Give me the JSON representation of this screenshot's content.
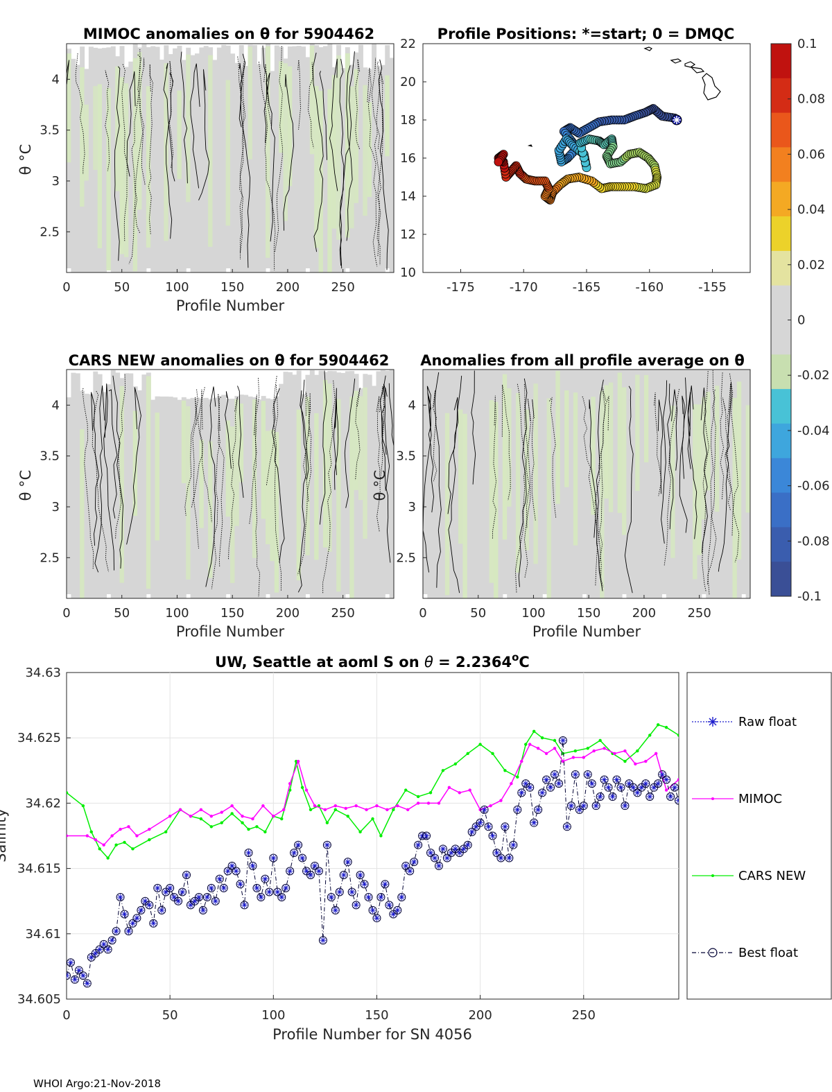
{
  "footer": "WHOI Argo:21-Nov-2018",
  "colors": {
    "cmap": [
      "#3a4f96",
      "#3a5dae",
      "#3a6fc6",
      "#3b87d8",
      "#3ea6dd",
      "#48c2d6",
      "#5ec9b7",
      "#7fcf8c",
      "#a7d563",
      "#d4db3f",
      "#ecd22a",
      "#f4a923",
      "#f2801f",
      "#ea571b",
      "#d42c15",
      "#c0120f"
    ],
    "grey": "#d6d6d6",
    "lightgreen": "#d6e8c0",
    "mimoc": "#ff00ff",
    "cars": "#00ee00",
    "raw": "#1a1acc",
    "best": "#000033"
  },
  "chart_data": [
    {
      "id": "mimoc",
      "type": "heatmap",
      "title": "MIMOC anomalies on θ  for 5904462",
      "xlabel": "Profile Number",
      "ylabel": "θ °C",
      "xlim": [
        0,
        296
      ],
      "ylim": [
        2.1,
        4.35
      ],
      "xticks": [
        0,
        50,
        100,
        150,
        200,
        250
      ],
      "yticks": [
        2.5,
        3,
        3.5,
        4
      ]
    },
    {
      "id": "positions",
      "type": "scatter",
      "title": "Profile Positions: *=start; 0 = DMQC",
      "xlim": [
        -178,
        -152
      ],
      "ylim": [
        10,
        22
      ],
      "xticks": [
        -175,
        -170,
        -165,
        -160,
        -155
      ],
      "yticks": [
        10,
        12,
        14,
        16,
        18,
        20,
        22
      ],
      "track": [
        [
          -158.0,
          18.1
        ],
        [
          -159.0,
          18.2
        ],
        [
          -159.7,
          18.6
        ],
        [
          -160.3,
          18.4
        ],
        [
          -161.2,
          18.2
        ],
        [
          -162.0,
          18.0
        ],
        [
          -163.0,
          18.0
        ],
        [
          -164.0,
          17.9
        ],
        [
          -164.8,
          17.6
        ],
        [
          -165.6,
          17.3
        ],
        [
          -166.3,
          17.6
        ],
        [
          -166.8,
          17.4
        ],
        [
          -166.2,
          16.9
        ],
        [
          -165.8,
          16.5
        ],
        [
          -166.5,
          16.0
        ],
        [
          -167.0,
          15.8
        ],
        [
          -167.2,
          16.4
        ],
        [
          -166.6,
          17.0
        ],
        [
          -166.0,
          16.6
        ],
        [
          -165.2,
          16.2
        ],
        [
          -165.0,
          15.5
        ],
        [
          -165.5,
          16.8
        ],
        [
          -164.8,
          17.0
        ],
        [
          -164.0,
          16.9
        ],
        [
          -163.6,
          16.7
        ],
        [
          -163.0,
          17.0
        ],
        [
          -162.9,
          16.6
        ],
        [
          -163.4,
          16.1
        ],
        [
          -163.1,
          15.7
        ],
        [
          -162.3,
          15.8
        ],
        [
          -161.6,
          16.2
        ],
        [
          -160.8,
          16.3
        ],
        [
          -160.1,
          16.0
        ],
        [
          -159.6,
          15.6
        ],
        [
          -159.4,
          15.0
        ],
        [
          -159.5,
          14.6
        ],
        [
          -160.3,
          14.4
        ],
        [
          -161.2,
          14.5
        ],
        [
          -162.2,
          14.5
        ],
        [
          -163.1,
          14.5
        ],
        [
          -163.8,
          14.4
        ],
        [
          -164.6,
          14.8
        ],
        [
          -165.6,
          15.0
        ],
        [
          -166.5,
          14.9
        ],
        [
          -167.1,
          14.6
        ],
        [
          -167.7,
          14.2
        ],
        [
          -167.9,
          13.8
        ],
        [
          -168.3,
          14.0
        ],
        [
          -168.0,
          14.4
        ],
        [
          -168.3,
          14.8
        ],
        [
          -169.1,
          14.8
        ],
        [
          -169.8,
          14.9
        ],
        [
          -170.3,
          15.2
        ],
        [
          -170.6,
          15.6
        ],
        [
          -171.0,
          15.3
        ],
        [
          -171.4,
          15.0
        ],
        [
          -171.6,
          15.8
        ],
        [
          -172.0,
          16.0
        ],
        [
          -171.6,
          16.2
        ],
        [
          -172.0,
          15.8
        ]
      ]
    },
    {
      "id": "cars",
      "type": "heatmap",
      "title": "CARS NEW anomalies on θ for 5904462",
      "xlabel": "Profile Number",
      "ylabel": "θ °C",
      "xlim": [
        0,
        296
      ],
      "ylim": [
        2.1,
        4.35
      ],
      "xticks": [
        0,
        50,
        100,
        150,
        200,
        250
      ],
      "yticks": [
        2.5,
        3,
        3.5,
        4
      ]
    },
    {
      "id": "allavg",
      "type": "heatmap",
      "title": "Anomalies from all profile average on θ",
      "xlabel": "Profile Number",
      "ylabel": "θ °C",
      "xlim": [
        0,
        296
      ],
      "ylim": [
        2.1,
        4.35
      ],
      "xticks": [
        0,
        50,
        100,
        150,
        200,
        250
      ],
      "yticks": [
        2.5,
        3,
        3.5,
        4
      ]
    },
    {
      "id": "colorbar",
      "type": "heatmap",
      "ylim": [
        -0.1,
        0.1
      ],
      "ticks": [
        "0.1",
        "0.08",
        "0.06",
        "0.04",
        "0.02",
        "0",
        "-0.02",
        "-0.04",
        "-0.06",
        "-0.08",
        "-0.1"
      ]
    },
    {
      "id": "salinity",
      "type": "line",
      "title": "UW, Seattle at aoml S on θ = 2.2364°C",
      "title_parts": [
        "UW, Seattle at aoml S on ",
        "θ",
        " = 2.2364",
        "o",
        "C"
      ],
      "xlabel": "Profile Number for SN 4056",
      "ylabel": "Salinity",
      "xlim": [
        0,
        296
      ],
      "ylim": [
        34.605,
        34.63
      ],
      "xticks": [
        0,
        50,
        100,
        150,
        200,
        250
      ],
      "yticks": [
        "34.605",
        "34.61",
        "34.615",
        "34.62",
        "34.625",
        "34.63"
      ],
      "legend": [
        "Raw float",
        "MIMOC",
        "CARS NEW",
        "Best float"
      ],
      "legend_placement": "outside-right",
      "series": [
        {
          "name": "MIMOC",
          "x": [
            0,
            10,
            14,
            18,
            22,
            26,
            30,
            34,
            40,
            50,
            55,
            60,
            65,
            70,
            75,
            80,
            85,
            90,
            95,
            100,
            105,
            108,
            112,
            116,
            120,
            125,
            130,
            135,
            140,
            145,
            150,
            155,
            160,
            165,
            170,
            175,
            180,
            185,
            190,
            195,
            200,
            205,
            210,
            215,
            220,
            224,
            228,
            232,
            236,
            240,
            245,
            250,
            255,
            260,
            265,
            270,
            275,
            280,
            285,
            290,
            296
          ],
          "y": [
            34.6175,
            34.6175,
            34.6172,
            34.6168,
            34.6175,
            34.618,
            34.6182,
            34.6175,
            34.618,
            34.619,
            34.6195,
            34.619,
            34.6195,
            34.619,
            34.6193,
            34.6198,
            34.619,
            34.6188,
            34.6198,
            34.619,
            34.6195,
            34.6215,
            34.6232,
            34.621,
            34.6198,
            34.6195,
            34.6198,
            34.6196,
            34.6198,
            34.6195,
            34.6198,
            34.6195,
            34.6198,
            34.6195,
            34.62,
            34.62,
            34.62,
            34.6212,
            34.6208,
            34.621,
            34.6195,
            34.6198,
            34.6202,
            34.6215,
            34.6232,
            34.6245,
            34.6242,
            34.6238,
            34.6242,
            34.6232,
            34.6235,
            34.6235,
            34.624,
            34.6242,
            34.6238,
            34.624,
            34.623,
            34.6232,
            34.6238,
            34.621,
            34.6218
          ]
        },
        {
          "name": "CARS NEW",
          "x": [
            0,
            8,
            12,
            16,
            20,
            24,
            28,
            32,
            40,
            48,
            55,
            60,
            65,
            70,
            75,
            80,
            85,
            88,
            92,
            96,
            100,
            104,
            108,
            111,
            114,
            118,
            122,
            126,
            130,
            136,
            142,
            148,
            152,
            158,
            164,
            170,
            176,
            182,
            188,
            194,
            200,
            206,
            212,
            218,
            222,
            226,
            230,
            236,
            240,
            246,
            252,
            258,
            264,
            270,
            276,
            282,
            286,
            290,
            296
          ],
          "y": [
            34.6208,
            34.6198,
            34.6178,
            34.6165,
            34.6158,
            34.6168,
            34.617,
            34.6165,
            34.6172,
            34.6178,
            34.6195,
            34.619,
            34.6188,
            34.6182,
            34.6185,
            34.6192,
            34.6185,
            34.618,
            34.6182,
            34.6178,
            34.619,
            34.6188,
            34.621,
            34.6232,
            34.6212,
            34.6195,
            34.6198,
            34.6185,
            34.6195,
            34.619,
            34.6178,
            34.6188,
            34.6175,
            34.6195,
            34.621,
            34.6205,
            34.6208,
            34.6225,
            34.623,
            34.6238,
            34.6245,
            34.6238,
            34.6225,
            34.622,
            34.6245,
            34.6255,
            34.625,
            34.6248,
            34.6238,
            34.624,
            34.6242,
            34.6248,
            34.6238,
            34.6232,
            34.624,
            34.6252,
            34.626,
            34.6258,
            34.6252
          ]
        },
        {
          "name": "Best float",
          "x": [
            0,
            2,
            4,
            6,
            8,
            10,
            12,
            14,
            16,
            18,
            20,
            22,
            24,
            26,
            28,
            30,
            32,
            34,
            36,
            38,
            40,
            42,
            44,
            46,
            48,
            50,
            52,
            54,
            56,
            58,
            60,
            62,
            64,
            66,
            68,
            70,
            72,
            74,
            76,
            78,
            80,
            82,
            84,
            86,
            88,
            90,
            92,
            94,
            96,
            98,
            100,
            102,
            104,
            106,
            108,
            110,
            112,
            114,
            116,
            118,
            120,
            122,
            124,
            126,
            128,
            130,
            132,
            134,
            136,
            138,
            140,
            142,
            144,
            146,
            148,
            150,
            152,
            154,
            156,
            158,
            160,
            162,
            164,
            166,
            168,
            170,
            172,
            174,
            176,
            178,
            180,
            182,
            184,
            186,
            188,
            190,
            192,
            194,
            196,
            198,
            200,
            202,
            204,
            206,
            208,
            210,
            212,
            214,
            216,
            218,
            220,
            222,
            224,
            226,
            228,
            230,
            232,
            234,
            236,
            238,
            240,
            242,
            244,
            246,
            248,
            250,
            252,
            254,
            256,
            258,
            260,
            262,
            264,
            266,
            268,
            270,
            272,
            274,
            276,
            278,
            280,
            282,
            284,
            286,
            288,
            290,
            292,
            294,
            296
          ],
          "y": [
            34.6068,
            34.6078,
            34.6065,
            34.6072,
            34.6068,
            34.6062,
            34.6082,
            34.6085,
            34.6088,
            34.6092,
            34.6088,
            34.6095,
            34.6102,
            34.6128,
            34.6115,
            34.6102,
            34.6108,
            34.6112,
            34.6118,
            34.6125,
            34.6122,
            34.6108,
            34.6135,
            34.6118,
            34.6132,
            34.6135,
            34.6128,
            34.6125,
            34.6132,
            34.6145,
            34.6122,
            34.6125,
            34.6128,
            34.6118,
            34.6128,
            34.6135,
            34.6125,
            34.6142,
            34.6135,
            34.6148,
            34.6152,
            34.6148,
            34.6138,
            34.6122,
            34.6162,
            34.6152,
            34.6135,
            34.6128,
            34.6142,
            34.6132,
            34.6158,
            34.6132,
            34.6128,
            34.6135,
            34.6148,
            34.6162,
            34.6168,
            34.6158,
            34.6148,
            34.6145,
            34.6152,
            34.6148,
            34.6095,
            34.6168,
            34.6128,
            34.6118,
            34.6132,
            34.6145,
            34.6155,
            34.6132,
            34.6122,
            34.6145,
            34.6138,
            34.6128,
            34.6118,
            34.6112,
            34.6128,
            34.6138,
            34.6122,
            34.6115,
            34.6118,
            34.6128,
            34.6152,
            34.6148,
            34.6155,
            34.6168,
            34.6175,
            34.6175,
            34.6162,
            34.6158,
            34.6152,
            34.6165,
            34.6158,
            34.6162,
            34.6165,
            34.6162,
            34.6165,
            34.6168,
            34.6178,
            34.6182,
            34.6185,
            34.6195,
            34.6182,
            34.6175,
            34.6162,
            34.6158,
            34.6182,
            34.6158,
            34.6168,
            34.6195,
            34.6208,
            34.6215,
            34.6212,
            34.6185,
            34.6195,
            34.6208,
            34.6218,
            34.6212,
            34.6222,
            34.6215,
            34.6248,
            34.6182,
            34.6198,
            34.6222,
            34.6195,
            34.6198,
            34.6222,
            34.6215,
            34.6198,
            34.6205,
            34.6218,
            34.6212,
            34.6205,
            34.6218,
            34.6212,
            34.6198,
            34.6215,
            34.6212,
            34.6208,
            34.6212,
            34.6215,
            34.6205,
            34.6212,
            34.6215,
            34.6222,
            34.6218,
            34.6205,
            34.6212,
            34.6202
          ]
        }
      ]
    }
  ]
}
